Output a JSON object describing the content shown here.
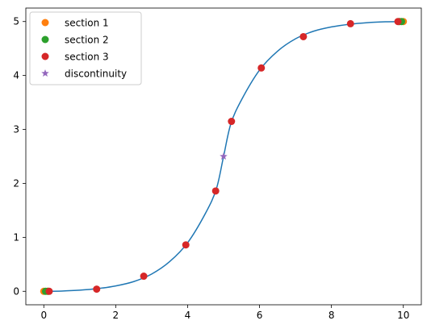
{
  "chart_data": {
    "type": "line",
    "title": "",
    "xlabel": "",
    "ylabel": "",
    "xlim": [
      -0.5,
      10.5
    ],
    "ylim": [
      -0.25,
      5.25
    ],
    "grid": false,
    "legend_placement": "top-left",
    "x_ticks": [
      0,
      2,
      4,
      6,
      8,
      10
    ],
    "y_ticks": [
      0,
      1,
      2,
      3,
      4,
      5
    ],
    "x_tick_labels": [
      "0",
      "2",
      "4",
      "6",
      "8",
      "10"
    ],
    "y_tick_labels": [
      "0",
      "1",
      "2",
      "3",
      "4",
      "5"
    ],
    "curve": {
      "color": "#1f77b4",
      "x": [
        0,
        0.5,
        1,
        1.5,
        2,
        2.5,
        3,
        3.5,
        4,
        4.5,
        4.8,
        5,
        5.2,
        5.5,
        6,
        6.5,
        7,
        7.5,
        8,
        8.5,
        9,
        9.5,
        10
      ],
      "y": [
        0,
        0.005,
        0.02,
        0.05,
        0.1,
        0.18,
        0.32,
        0.55,
        0.9,
        1.45,
        1.9,
        2.5,
        3.1,
        3.55,
        4.1,
        4.45,
        4.68,
        4.82,
        4.9,
        4.95,
        4.98,
        4.995,
        5.0
      ]
    },
    "series": [
      {
        "name": "section 1",
        "color": "#ff7f0e",
        "marker": "circle",
        "x": [
          0.0,
          0.1,
          9.9,
          10.0
        ],
        "y": [
          0.0,
          0.0,
          5.0,
          5.0
        ]
      },
      {
        "name": "section 2",
        "color": "#2ca02c",
        "marker": "circle",
        "x": [
          0.05,
          0.12,
          9.88,
          9.95
        ],
        "y": [
          0.0,
          0.0,
          5.0,
          5.0
        ]
      },
      {
        "name": "section 3",
        "color": "#d62728",
        "marker": "circle",
        "x": [
          0.15,
          1.47,
          2.78,
          3.95,
          4.78,
          5.22,
          6.05,
          7.22,
          8.53,
          9.85
        ],
        "y": [
          0.0,
          0.04,
          0.28,
          0.86,
          1.86,
          3.15,
          4.14,
          4.72,
          4.96,
          5.0
        ]
      },
      {
        "name": "discontinuity",
        "color": "#9467bd",
        "marker": "star",
        "x": [
          5.0
        ],
        "y": [
          2.5
        ]
      }
    ]
  }
}
